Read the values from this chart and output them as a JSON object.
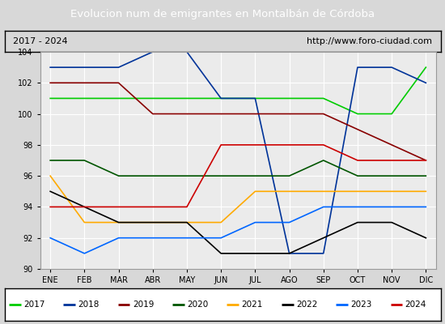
{
  "title": "Evolucion num de emigrantes en Montalbán de Córdoba",
  "title_color": "#ffffff",
  "title_bg": "#4472c4",
  "subtitle_left": "2017 - 2024",
  "subtitle_right": "http://www.foro-ciudad.com",
  "months": [
    "ENE",
    "FEB",
    "MAR",
    "ABR",
    "MAY",
    "JUN",
    "JUL",
    "AGO",
    "SEP",
    "OCT",
    "NOV",
    "DIC"
  ],
  "ylim": [
    90,
    104
  ],
  "yticks": [
    90,
    92,
    94,
    96,
    98,
    100,
    102,
    104
  ],
  "series": {
    "2017": {
      "color": "#00cc00",
      "data": [
        101,
        101,
        101,
        101,
        101,
        101,
        101,
        101,
        101,
        100,
        100,
        103
      ]
    },
    "2018": {
      "color": "#003399",
      "data": [
        103,
        103,
        103,
        104,
        104,
        101,
        101,
        91,
        91,
        103,
        103,
        102
      ]
    },
    "2019": {
      "color": "#880000",
      "data": [
        102,
        102,
        102,
        100,
        100,
        100,
        100,
        100,
        100,
        99,
        98,
        97
      ]
    },
    "2020": {
      "color": "#005500",
      "data": [
        97,
        97,
        96,
        96,
        96,
        96,
        96,
        96,
        97,
        96,
        96,
        96
      ]
    },
    "2021": {
      "color": "#ffaa00",
      "data": [
        96,
        93,
        93,
        93,
        93,
        93,
        95,
        95,
        95,
        95,
        95,
        95
      ]
    },
    "2022": {
      "color": "#000000",
      "data": [
        95,
        94,
        93,
        93,
        93,
        91,
        91,
        91,
        92,
        93,
        93,
        92
      ]
    },
    "2023": {
      "color": "#0066ff",
      "data": [
        92,
        91,
        92,
        92,
        92,
        92,
        93,
        93,
        94,
        94,
        94,
        94
      ]
    },
    "2024": {
      "color": "#cc0000",
      "data": [
        94,
        94,
        94,
        94,
        94,
        98,
        98,
        98,
        98,
        97,
        97,
        97
      ]
    }
  },
  "bg_plot": "#ebebeb",
  "bg_fig": "#d8d8d8",
  "grid_color": "#ffffff",
  "legend_bg": "#ffffff",
  "legend_border": "#000000"
}
